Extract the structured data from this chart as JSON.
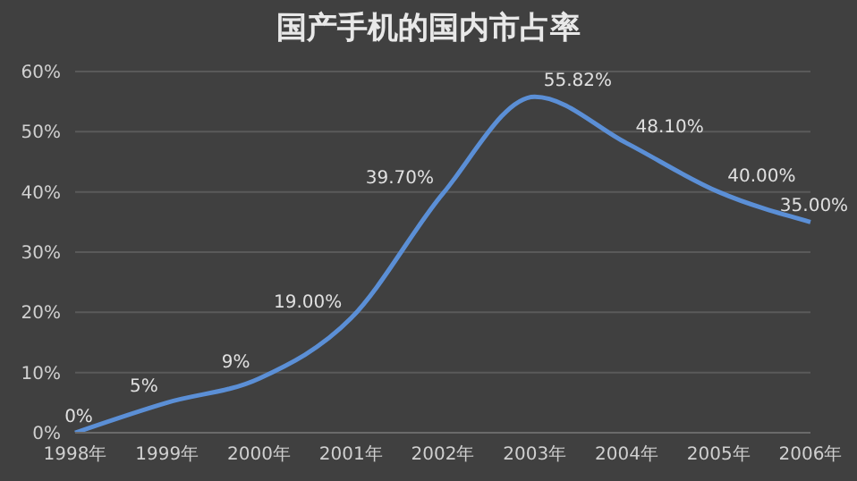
{
  "chart_data": {
    "type": "line",
    "title": "国产手机的国内市占率",
    "categories": [
      "1998年",
      "1999年",
      "2000年",
      "2001年",
      "2002年",
      "2003年",
      "2004年",
      "2005年",
      "2006年"
    ],
    "series": [
      {
        "color": "#5b8fd6",
        "values": [
          0,
          5,
          9,
          19,
          39.7,
          55.82,
          48.1,
          40,
          35
        ],
        "value_labels": [
          "0%",
          "5%",
          "9%",
          "19.00%",
          "39.70%",
          "55.82%",
          "48.10%",
          "40.00%",
          "35.00%"
        ]
      }
    ],
    "ylim": [
      0,
      60
    ],
    "yticks": [
      {
        "value": 0,
        "label": "0%"
      },
      {
        "value": 10,
        "label": "10%"
      },
      {
        "value": 20,
        "label": "20%"
      },
      {
        "value": 30,
        "label": "30%"
      },
      {
        "value": 40,
        "label": "40%"
      },
      {
        "value": 50,
        "label": "50%"
      },
      {
        "value": 60,
        "label": "60%"
      }
    ],
    "grid": "y",
    "legend": false,
    "marker": "none",
    "line_style": "solid"
  }
}
